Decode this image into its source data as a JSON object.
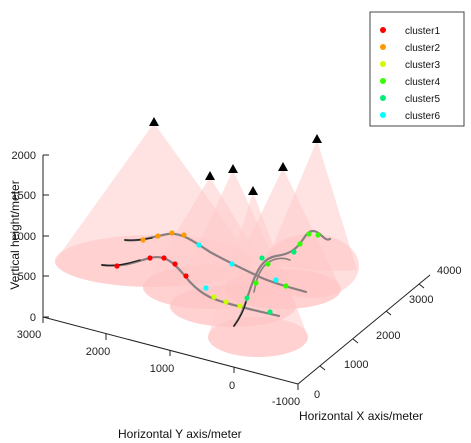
{
  "chart_data": {
    "type": "scatter",
    "projection": "3d",
    "title": "",
    "xlabel": "Horizontal X axis/meter",
    "ylabel": "Horizontal Y axis/meter",
    "zlabel": "Vertical height/meter",
    "xlim": [
      -1000,
      4000
    ],
    "ylim": [
      -1000,
      3000
    ],
    "zlim": [
      0,
      2000
    ],
    "x_ticks": [
      "0",
      "1000",
      "2000",
      "3000",
      "4000"
    ],
    "y_ticks": [
      "3000",
      "2000",
      "1000",
      "0",
      "-1000"
    ],
    "z_ticks": [
      "0",
      "500",
      "1000",
      "1500",
      "2000"
    ],
    "legend_position": "top-right",
    "series": [
      {
        "name": "cluster1",
        "color": "#ff0000"
      },
      {
        "name": "cluster2",
        "color": "#ff9900"
      },
      {
        "name": "cluster3",
        "color": "#ccff00"
      },
      {
        "name": "cluster4",
        "color": "#33ff00"
      },
      {
        "name": "cluster5",
        "color": "#00ee77"
      },
      {
        "name": "cluster6",
        "color": "#00ffff"
      }
    ],
    "cone_apex_marker": "black-triangle",
    "cone_color": "#ffb6b6"
  }
}
